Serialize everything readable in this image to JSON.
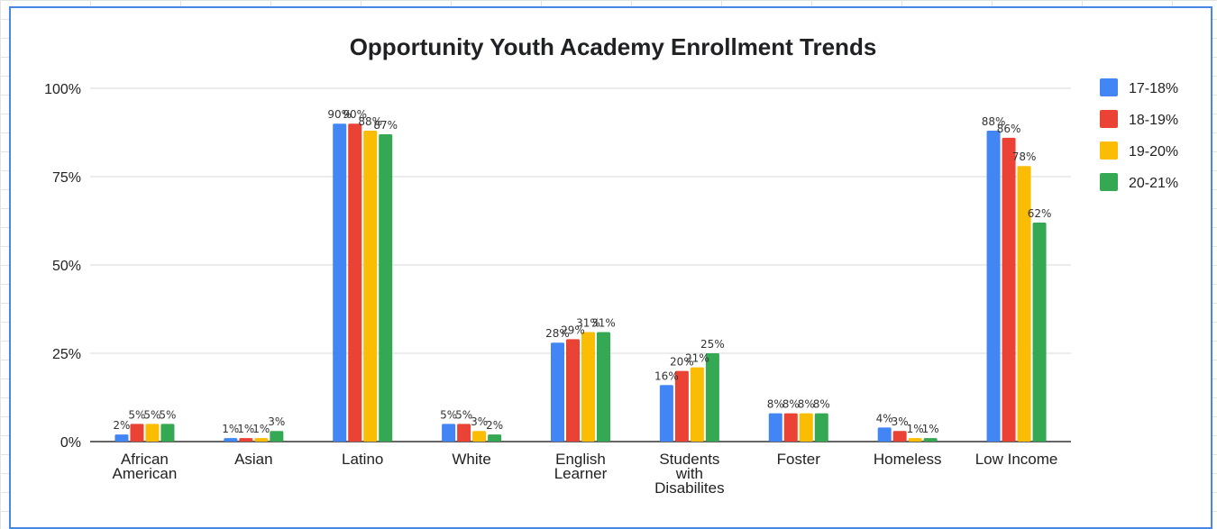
{
  "chart_data": {
    "type": "bar",
    "title": "Opportunity Youth Academy Enrollment Trends",
    "xlabel": "",
    "ylabel": "",
    "ylim": [
      0,
      100
    ],
    "y_ticks": [
      "0%",
      "25%",
      "50%",
      "75%",
      "100%"
    ],
    "grid": true,
    "legend_position": "right",
    "categories": [
      [
        "African",
        "American"
      ],
      [
        "Asian"
      ],
      [
        "Latino"
      ],
      [
        "White"
      ],
      [
        "English",
        "Learner"
      ],
      [
        "Students",
        "with",
        "Disabilites"
      ],
      [
        "Foster"
      ],
      [
        "Homeless"
      ],
      [
        "Low Income"
      ]
    ],
    "series": [
      {
        "name": "17-18%",
        "color": "#4285f4",
        "values": [
          2,
          1,
          90,
          5,
          28,
          16,
          8,
          4,
          88
        ]
      },
      {
        "name": "18-19%",
        "color": "#ea4335",
        "values": [
          5,
          1,
          90,
          5,
          29,
          20,
          8,
          3,
          86
        ]
      },
      {
        "name": "19-20%",
        "color": "#fbbc04",
        "values": [
          5,
          1,
          88,
          3,
          31,
          21,
          8,
          1,
          78
        ]
      },
      {
        "name": "20-21%",
        "color": "#34a853",
        "values": [
          5,
          3,
          87,
          2,
          31,
          25,
          8,
          1,
          62
        ]
      }
    ]
  }
}
